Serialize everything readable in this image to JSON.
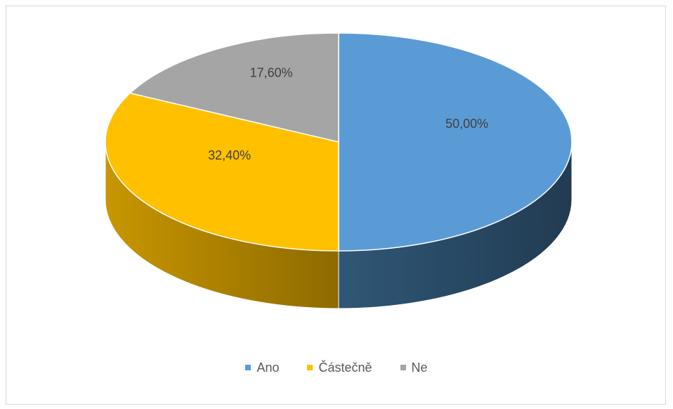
{
  "chart_data": {
    "type": "pie",
    "style": "3d",
    "categories": [
      "Ano",
      "Částečně",
      "Ne"
    ],
    "values": [
      50.0,
      32.4,
      17.6
    ],
    "labels": [
      "50,00%",
      "32,40%",
      "17,60%"
    ],
    "colors": [
      "#5b9bd5",
      "#ffc000",
      "#a5a5a5"
    ],
    "side_colors": [
      "#2f5275",
      "#b88a00",
      "#7a7a7a"
    ],
    "legend_position": "bottom",
    "title": ""
  },
  "legend": [
    {
      "label": "Ano",
      "color": "#5b9bd5"
    },
    {
      "label": "Částečně",
      "color": "#ffc000"
    },
    {
      "label": "Ne",
      "color": "#a5a5a5"
    }
  ]
}
